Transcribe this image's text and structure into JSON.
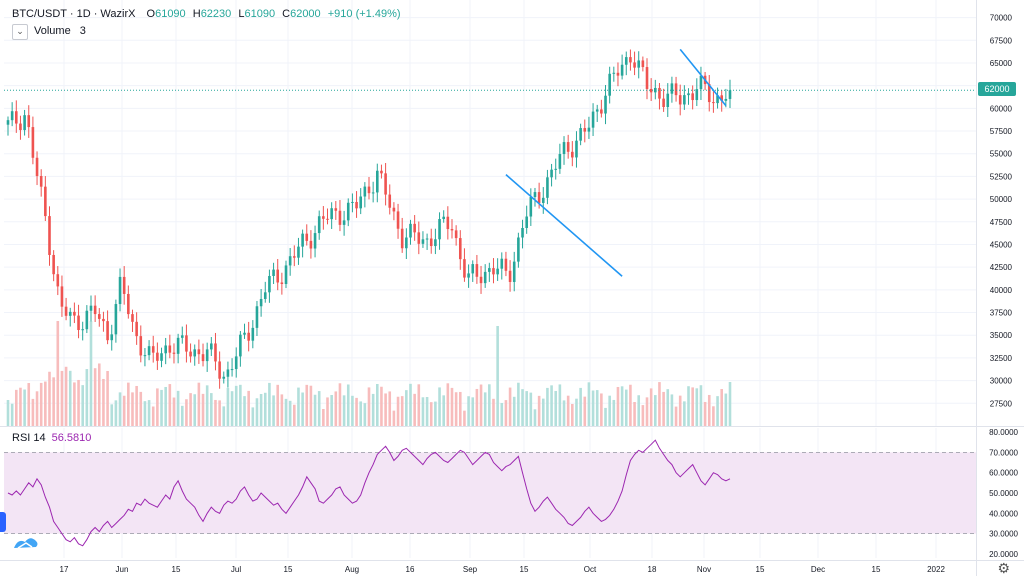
{
  "legend": {
    "symbol": "BTC/USDT · 1D · WazirX",
    "o_label": "O",
    "o": "61090",
    "h_label": "H",
    "h": "62230",
    "l_label": "L",
    "l": "61090",
    "c_label": "C",
    "c": "62000",
    "change": "+910 (+1.49%)",
    "volume_label": "Volume",
    "volume_value": "3",
    "rsi_label": "RSI 14",
    "rsi_value": "56.5810",
    "last_price_tag": "62000"
  },
  "colors": {
    "up": "#26a69a",
    "down": "#ef5350",
    "up_vol": "#b2dfdb",
    "down_vol": "#f7bcbc",
    "rsi_line": "#9c27b0",
    "rsi_band": "#f3e5f5",
    "trendline": "#2196f3"
  },
  "icons": [
    "chevron-down-icon",
    "gear-icon",
    "tradingview-logo-icon"
  ],
  "chart_data": [
    {
      "type": "candlestick",
      "y_axis_ticks": [
        "70000",
        "67500",
        "65000",
        "62500",
        "60000",
        "57500",
        "55000",
        "52500",
        "50000",
        "47500",
        "45000",
        "42500",
        "40000",
        "37500",
        "35000",
        "32500",
        "30000",
        "27500"
      ],
      "x_axis_ticks": [
        "17",
        "Jun",
        "15",
        "Jul",
        "15",
        "Aug",
        "16",
        "Sep",
        "15",
        "Oct",
        "18",
        "Nov",
        "15",
        "Dec",
        "15",
        "2022"
      ],
      "ylim": [
        25000,
        71500
      ],
      "last_price": 62000,
      "trendlines": [
        {
          "from": [
            "Sep 7",
            52700
          ],
          "to": [
            "Oct 6",
            41500
          ]
        },
        {
          "from": [
            "Oct 20",
            66500
          ],
          "to": [
            "Nov 10",
            60300
          ]
        }
      ]
    },
    {
      "type": "line",
      "name": "RSI 14",
      "y_axis_ticks": [
        "80.0000",
        "70.0000",
        "60.0000",
        "50.0000",
        "40.0000",
        "30.0000",
        "20.0000"
      ],
      "ylim": [
        18,
        82
      ],
      "band": [
        30,
        70
      ],
      "values": [
        50,
        49,
        51,
        49,
        52,
        55,
        53,
        57,
        54,
        48,
        43,
        36,
        33,
        30,
        27,
        26,
        28,
        25,
        24,
        27,
        31,
        33,
        31,
        34,
        36,
        33,
        35,
        37,
        39,
        42,
        41,
        45,
        44,
        47,
        45,
        44,
        43,
        46,
        49,
        47,
        53,
        56,
        51,
        47,
        45,
        43,
        39,
        36,
        40,
        43,
        41,
        40,
        44,
        46,
        45,
        47,
        51,
        53,
        49,
        46,
        47,
        50,
        48,
        46,
        44,
        45,
        42,
        40,
        43,
        46,
        49,
        53,
        58,
        55,
        52,
        46,
        45,
        47,
        49,
        52,
        53,
        49,
        47,
        45,
        46,
        49,
        55,
        60,
        64,
        69,
        71,
        73,
        70,
        66,
        68,
        71,
        72,
        70,
        68,
        66,
        64,
        67,
        69,
        70,
        68,
        66,
        65,
        67,
        69,
        71,
        70,
        67,
        64,
        66,
        68,
        70,
        69,
        65,
        63,
        61,
        63,
        64,
        66,
        68,
        60,
        52,
        45,
        41,
        43,
        46,
        48,
        45,
        42,
        40,
        38,
        35,
        34,
        36,
        38,
        41,
        43,
        40,
        38,
        36,
        37,
        39,
        42,
        46,
        51,
        59,
        66,
        69,
        71,
        70,
        72,
        74,
        76,
        72,
        69,
        66,
        64,
        60,
        58,
        60,
        62,
        64,
        60,
        56,
        54,
        57,
        60,
        59,
        57,
        56,
        57
      ],
      "value_count": 175
    }
  ]
}
